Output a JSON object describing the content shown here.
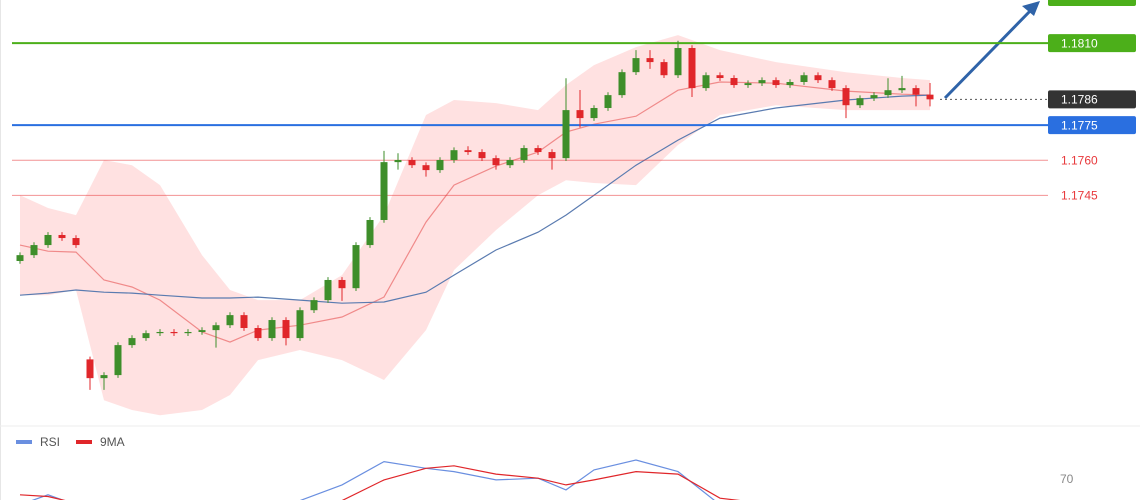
{
  "chart_data": [
    {
      "type": "candlestick",
      "xlim": [
        0,
        65
      ],
      "ylim": [
        1.1647,
        1.18284
      ],
      "x": [
        0,
        1,
        2,
        3,
        4,
        5,
        6,
        7,
        8,
        9,
        10,
        11,
        12,
        13,
        14,
        15,
        16,
        17,
        18,
        19,
        20,
        21,
        22,
        23,
        24,
        25,
        26,
        27,
        28,
        29,
        30,
        31,
        32,
        33,
        34,
        35,
        36,
        37,
        38,
        39,
        40,
        41,
        42,
        43,
        44,
        45,
        46,
        47,
        48,
        49,
        50,
        51,
        52,
        53,
        54,
        55,
        56,
        57,
        58,
        59,
        60,
        61,
        62,
        63,
        64,
        65
      ],
      "open": [
        1.1717,
        1.17195,
        1.17238,
        1.17281,
        1.17268,
        1.1675,
        1.1667,
        1.16683,
        1.16811,
        1.16841,
        1.16862,
        1.16867,
        1.16862,
        1.16867,
        1.16875,
        1.16896,
        1.16939,
        1.16884,
        1.16841,
        1.16918,
        1.16841,
        1.1696,
        1.17003,
        1.17089,
        1.17054,
        1.17238,
        1.17345,
        1.17592,
        1.17601,
        1.17579,
        1.17558,
        1.17601,
        1.17643,
        1.17635,
        1.17609,
        1.17579,
        1.17601,
        1.17652,
        1.17635,
        1.17609,
        1.17814,
        1.1778,
        1.17823,
        1.17878,
        1.17976,
        1.18036,
        1.18019,
        1.17963,
        1.18079,
        1.17908,
        1.17963,
        1.17951,
        1.17921,
        1.17929,
        1.17942,
        1.17921,
        1.17934,
        1.17963,
        1.17942,
        1.17908,
        1.17835,
        1.17865,
        1.17878,
        1.17899,
        1.17908,
        1.1788
      ],
      "high": [
        1.17207,
        1.1725,
        1.17293,
        1.17293,
        1.1728,
        1.16762,
        1.16695,
        1.16823,
        1.16853,
        1.16874,
        1.16879,
        1.16879,
        1.16879,
        1.16887,
        1.16908,
        1.16951,
        1.16951,
        1.16896,
        1.1693,
        1.1693,
        1.16972,
        1.17015,
        1.17101,
        1.17101,
        1.1725,
        1.17357,
        1.1764,
        1.1763,
        1.17613,
        1.17591,
        1.17613,
        1.17655,
        1.1766,
        1.17647,
        1.17621,
        1.17613,
        1.17664,
        1.17664,
        1.17647,
        1.1795,
        1.179,
        1.17835,
        1.1789,
        1.17988,
        1.1807,
        1.1807,
        1.18031,
        1.1811,
        1.18091,
        1.17975,
        1.17975,
        1.17963,
        1.17941,
        1.17954,
        1.17954,
        1.17946,
        1.17975,
        1.17975,
        1.17954,
        1.1792,
        1.17877,
        1.1789,
        1.1795,
        1.1796,
        1.1792,
        1.1793
      ],
      "low": [
        1.17158,
        1.17183,
        1.17226,
        1.17256,
        1.17226,
        1.1662,
        1.1662,
        1.16671,
        1.16799,
        1.16829,
        1.1685,
        1.1685,
        1.1685,
        1.16855,
        1.168,
        1.16884,
        1.16872,
        1.16829,
        1.16829,
        1.1681,
        1.16829,
        1.16948,
        1.16991,
        1.17,
        1.17042,
        1.17226,
        1.17333,
        1.1756,
        1.17567,
        1.1753,
        1.17546,
        1.17589,
        1.17623,
        1.17597,
        1.1756,
        1.17567,
        1.17589,
        1.17623,
        1.1756,
        1.17597,
        1.1774,
        1.17768,
        1.17811,
        1.17866,
        1.17964,
        1.1799,
        1.17951,
        1.17951,
        1.1787,
        1.17896,
        1.17939,
        1.17909,
        1.17909,
        1.17917,
        1.17909,
        1.17909,
        1.17922,
        1.1793,
        1.17896,
        1.1778,
        1.17823,
        1.17853,
        1.17866,
        1.17887,
        1.1783,
        1.1783
      ],
      "close": [
        1.17195,
        1.17238,
        1.17281,
        1.17268,
        1.17238,
        1.1667,
        1.16683,
        1.16811,
        1.16841,
        1.16862,
        1.16867,
        1.16862,
        1.16867,
        1.16875,
        1.16896,
        1.16939,
        1.16884,
        1.16841,
        1.16918,
        1.16841,
        1.1696,
        1.17003,
        1.17089,
        1.17054,
        1.17238,
        1.17345,
        1.17592,
        1.17601,
        1.17579,
        1.17558,
        1.17601,
        1.17643,
        1.17635,
        1.17609,
        1.17579,
        1.17601,
        1.17652,
        1.17635,
        1.17609,
        1.17814,
        1.1778,
        1.17823,
        1.17878,
        1.17976,
        1.18036,
        1.18019,
        1.17963,
        1.18079,
        1.17908,
        1.17963,
        1.17951,
        1.17921,
        1.17929,
        1.17942,
        1.17921,
        1.17934,
        1.17963,
        1.17942,
        1.17908,
        1.17835,
        1.17865,
        1.17878,
        1.17899,
        1.17908,
        1.1788,
        1.1786
      ],
      "up_color": "#3e8e2a",
      "down_color": "#e0262a",
      "band_x": [
        0,
        2,
        4,
        6,
        8,
        10,
        13,
        15,
        17,
        20,
        23,
        26,
        29,
        31,
        34,
        37,
        39,
        41,
        44,
        47,
        50,
        54,
        59,
        63,
        65
      ],
      "band_color": "#ffc9c9",
      "upper": {
        "values": [
          1.17451,
          1.17396,
          1.17366,
          1.17601,
          1.17579,
          1.17494,
          1.17195,
          1.17046,
          1.17003,
          1.17003,
          1.1711,
          1.17366,
          1.17793,
          1.17857,
          1.17844,
          1.17814,
          1.17921,
          1.18006,
          1.18083,
          1.18134,
          1.1807,
          1.18019,
          1.17976,
          1.17951,
          1.17942
        ]
      },
      "lower": {
        "values": [
          1.17024,
          1.17024,
          1.17046,
          1.16576,
          1.16534,
          1.16512,
          1.16534,
          1.16598,
          1.16747,
          1.1679,
          1.16747,
          1.16662,
          1.16875,
          1.17131,
          1.17302,
          1.17451,
          1.17515,
          1.17503,
          1.17494,
          1.17665,
          1.17793,
          1.17835,
          1.17814,
          1.17814,
          1.17814
        ]
      },
      "middle": {
        "color": "#f08a8a",
        "values": [
          1.17238,
          1.17212,
          1.17208,
          1.17089,
          1.17059,
          1.17003,
          1.16867,
          1.16824,
          1.16875,
          1.16896,
          1.16931,
          1.17016,
          1.17336,
          1.17494,
          1.17575,
          1.17635,
          1.1772,
          1.17754,
          1.17788,
          1.17899,
          1.17934,
          1.17929,
          1.17895,
          1.17882,
          1.17878
        ]
      },
      "ma": {
        "color": "#5a7bb0",
        "values": [
          1.17024,
          1.17033,
          1.17046,
          1.17037,
          1.17033,
          1.17024,
          1.17012,
          1.17012,
          1.17016,
          1.17003,
          1.1699,
          1.16995,
          1.17037,
          1.1711,
          1.17217,
          1.17293,
          1.17366,
          1.17451,
          1.17579,
          1.17686,
          1.1778,
          1.17823,
          1.17857,
          1.17874,
          1.17878
        ]
      },
      "levels": [
        {
          "value": 1.181,
          "label": "1.1810",
          "color": "#4caf1a",
          "boxed": true,
          "style": "solid"
        },
        {
          "value": 1.1786,
          "label": "1.1786",
          "color": "#333333",
          "boxed": true,
          "style": "dotted"
        },
        {
          "value": 1.1775,
          "label": "1.1775",
          "color": "#2a6fe0",
          "boxed": true,
          "style": "solid"
        },
        {
          "value": 1.176,
          "label": "1.1760",
          "color": "#e8393c",
          "boxed": false,
          "style": "solid"
        },
        {
          "value": 1.1745,
          "label": "1.1745",
          "color": "#e8393c",
          "boxed": false,
          "style": "solid"
        }
      ]
    },
    {
      "type": "line",
      "xlim": [
        0,
        65
      ],
      "ylim": [
        0,
        100
      ],
      "yticks": [
        70
      ],
      "grid": false,
      "x": [
        0,
        2,
        4,
        6,
        8,
        10,
        13,
        15,
        17,
        20,
        23,
        26,
        29,
        31,
        34,
        37,
        39,
        41,
        44,
        47,
        50,
        54,
        59,
        63,
        65
      ],
      "series": [
        {
          "name": "RSI",
          "color": "#6a8fe0",
          "values": [
            40,
            52,
            40,
            20,
            35,
            40,
            42,
            45,
            40,
            45,
            64,
            92,
            84,
            80,
            70,
            72,
            58,
            82,
            94,
            80,
            40,
            35,
            40,
            45,
            42
          ]
        },
        {
          "name": "9MA",
          "color": "#e0262a",
          "values": [
            52,
            50,
            42,
            30,
            30,
            35,
            40,
            42,
            42,
            42,
            45,
            70,
            84,
            87,
            77,
            72,
            64,
            70,
            80,
            77,
            48,
            40,
            40,
            42,
            43
          ]
        }
      ]
    }
  ]
}
